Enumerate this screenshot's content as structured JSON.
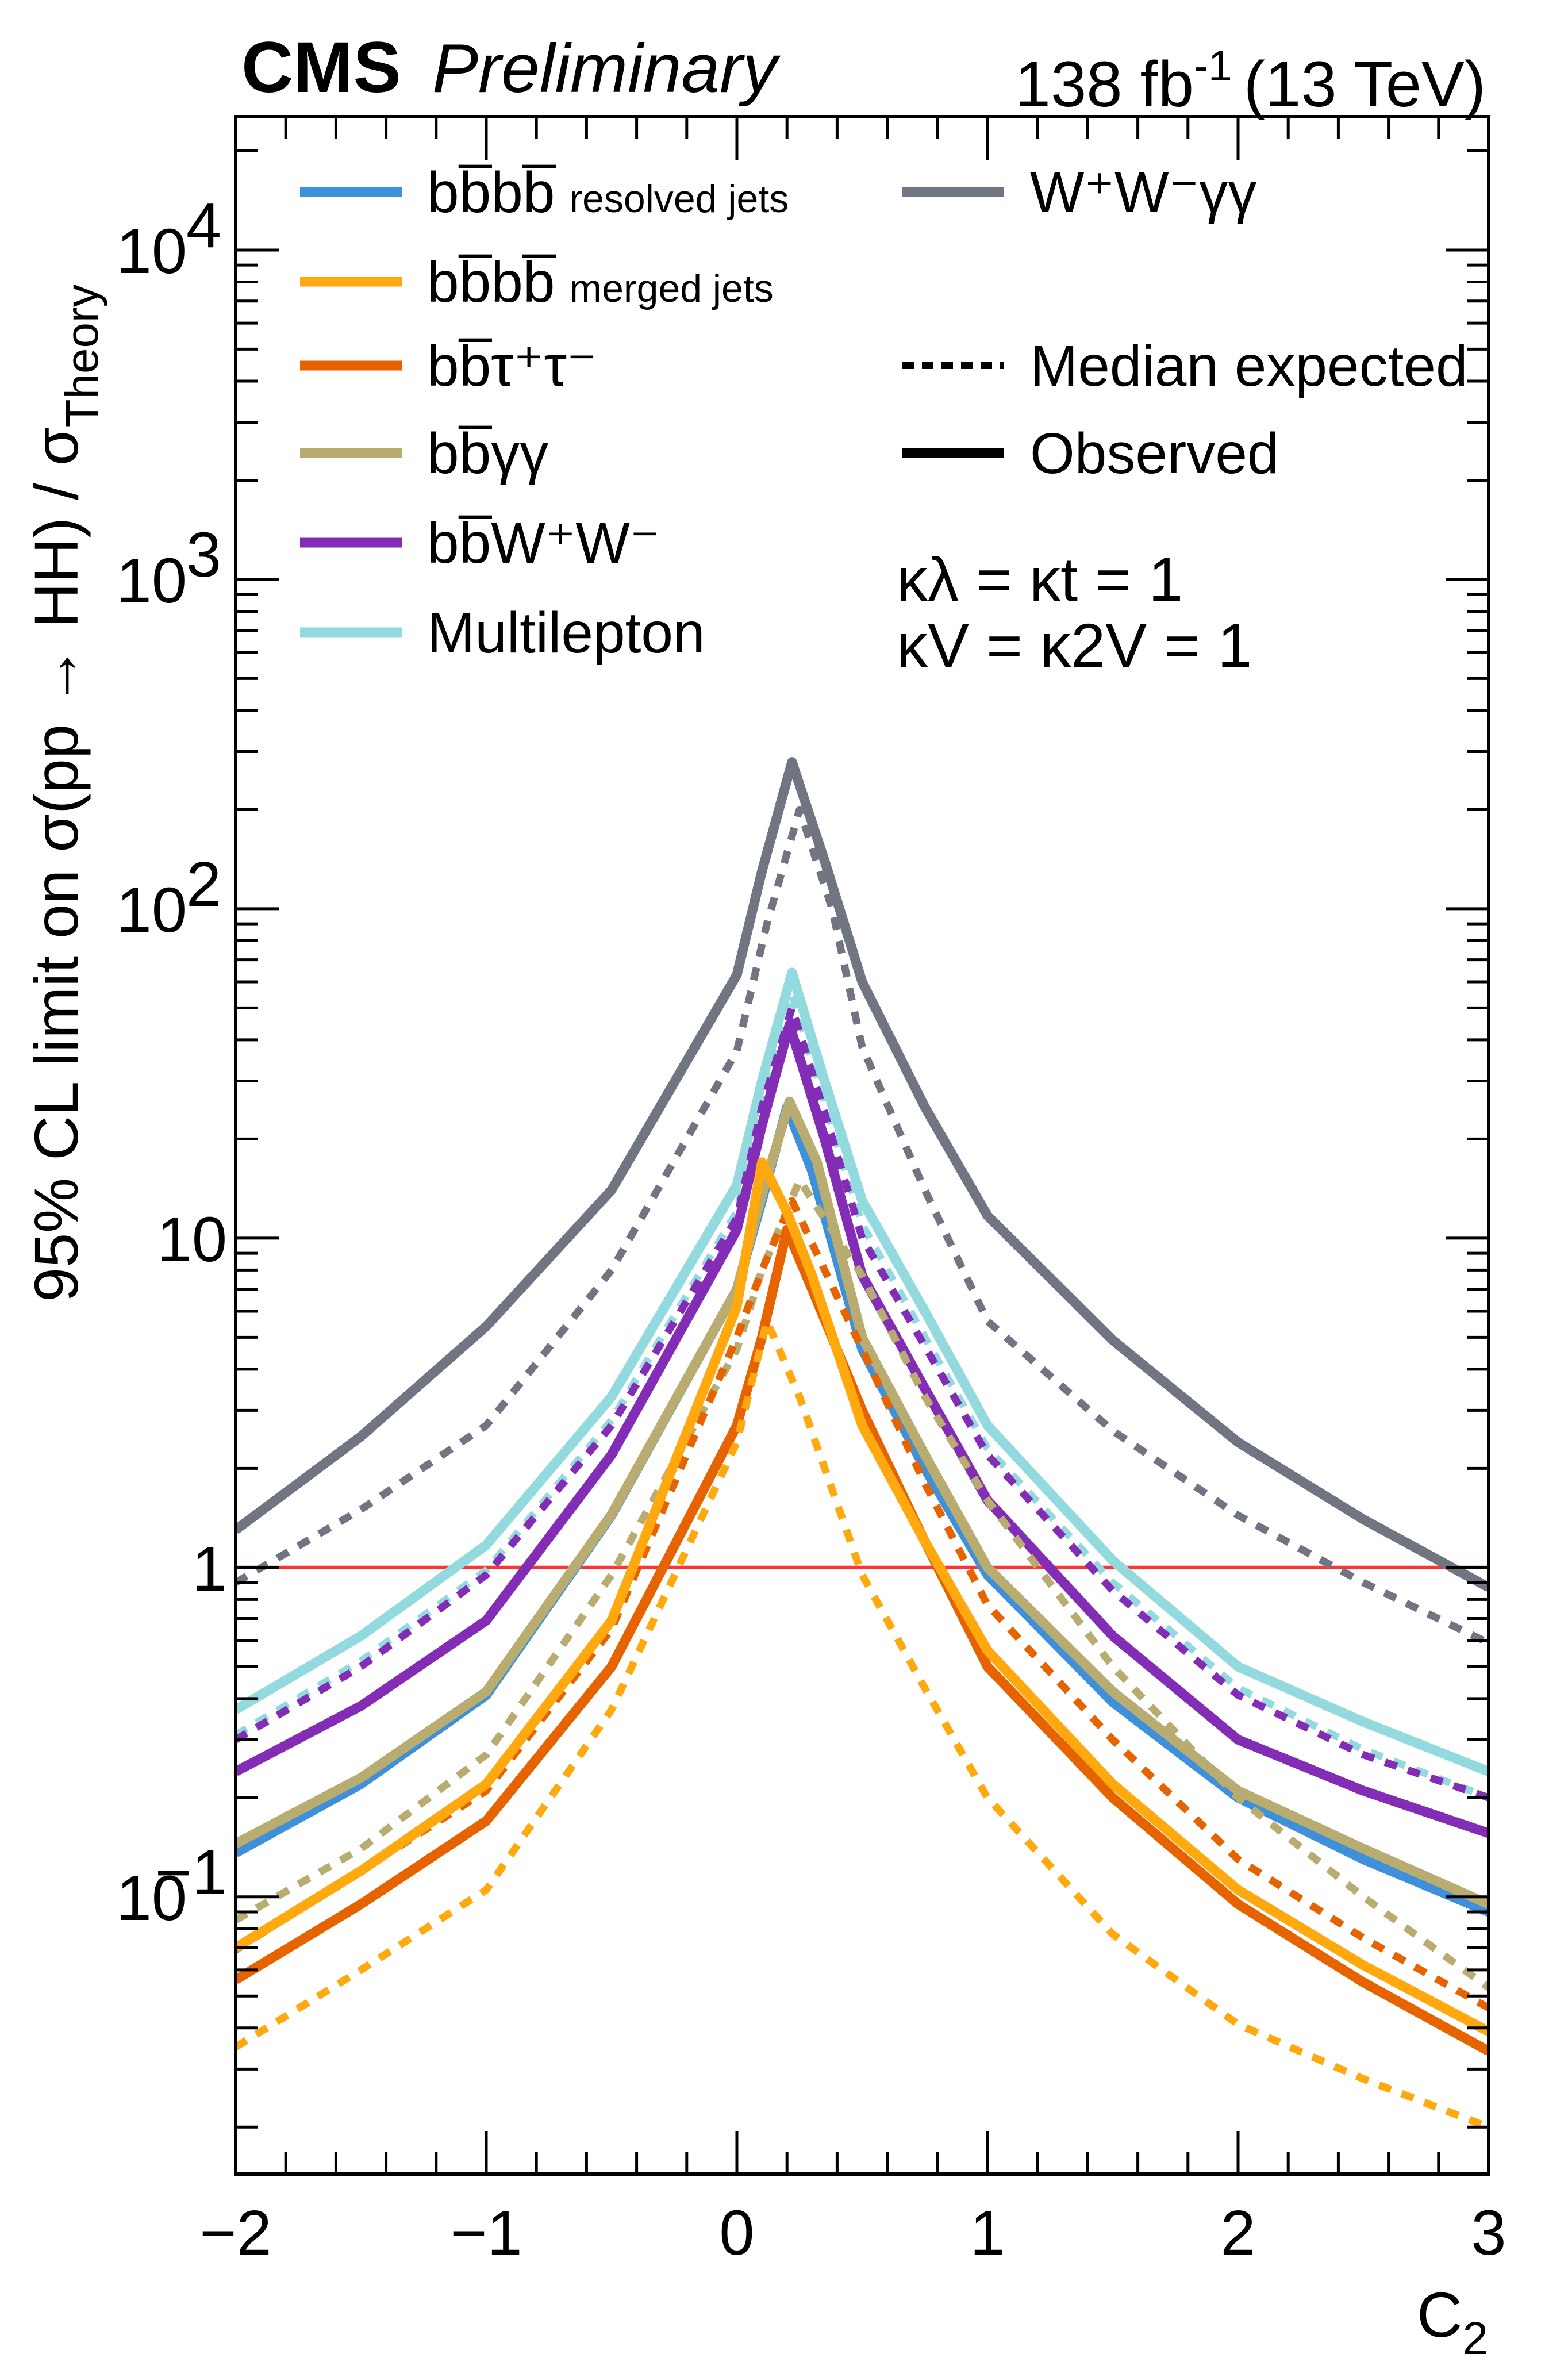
{
  "chart_data": {
    "type": "line",
    "header": {
      "experiment": "CMS",
      "status": "Preliminary",
      "lumi": "138 fb",
      "lumi_exp": "-1",
      "energy": "(13 TeV)"
    },
    "xlabel": "C",
    "xlabel_sub": "2",
    "ylabel": "95% CL limit on σ(pp → HH) / σ",
    "ylabel_sub": "Theory",
    "xlim": [
      -2,
      3
    ],
    "ylim": [
      0.0144,
      25400
    ],
    "yscale": "log",
    "x_ticks": [
      {
        "v": -2,
        "t": "−2"
      },
      {
        "v": -1,
        "t": "−1"
      },
      {
        "v": 0,
        "t": "0"
      },
      {
        "v": 1,
        "t": "1"
      },
      {
        "v": 2,
        "t": "2"
      },
      {
        "v": 3,
        "t": "3"
      }
    ],
    "y_ticks": [
      {
        "v": 0.1,
        "t": "10",
        "e": "−1"
      },
      {
        "v": 1,
        "t": "1",
        "e": ""
      },
      {
        "v": 10,
        "t": "10",
        "e": ""
      },
      {
        "v": 100,
        "t": "10",
        "e": "2"
      },
      {
        "v": 1000,
        "t": "10",
        "e": "3"
      },
      {
        "v": 10000,
        "t": "10",
        "e": "4"
      }
    ],
    "reference_line": {
      "y": 1,
      "color": "#ff3333"
    },
    "annotations": [
      "κλ = κt = 1",
      "κV = κ2V = 1"
    ],
    "annotation_parts": [
      {
        "a": "κ",
        "as": "λ",
        "b": " = κ",
        "bs": "t",
        "c": " = 1"
      },
      {
        "a": "κ",
        "as": "V",
        "b": " = κ",
        "bs": "2V",
        "c": " = 1"
      }
    ],
    "legend": {
      "left": [
        {
          "label": "bb̅bb̅",
          "small": "resolved jets",
          "color": "#3f90da"
        },
        {
          "label": "bb̅bb̅",
          "small": "merged jets",
          "color": "#ffa90e"
        },
        {
          "label": "bb̅τ⁺τ⁻",
          "small": "",
          "color": "#e76300"
        },
        {
          "label": "bb̅γγ",
          "small": "",
          "color": "#b9ac70"
        },
        {
          "label": "bb̅W⁺W⁻",
          "small": "",
          "color": "#832db6"
        },
        {
          "label": "Multilepton",
          "small": "",
          "color": "#92dadd"
        }
      ],
      "right": [
        {
          "label": "W⁺W⁻γγ",
          "style": "solid",
          "color": "#717581"
        },
        {
          "label": "Median expected",
          "style": "dotted",
          "color": "#000000"
        },
        {
          "label": "Observed",
          "style": "solid",
          "color": "#000000"
        }
      ]
    },
    "series": [
      {
        "name": "WWγγ observed",
        "color": "#717581",
        "style": "solid",
        "x": [
          -2,
          -1.5,
          -1,
          -0.5,
          0,
          0.1,
          0.22,
          0.35,
          0.5,
          0.75,
          1,
          1.5,
          2,
          2.5,
          3
        ],
        "y": [
          1.3,
          2.5,
          5.4,
          14,
          63,
          130,
          279,
          140,
          60,
          25,
          11.7,
          4.9,
          2.4,
          1.4,
          0.87
        ]
      },
      {
        "name": "WWγγ expected",
        "color": "#717581",
        "style": "dotted",
        "x": [
          -2,
          -1.5,
          -1,
          -0.5,
          0,
          0.12,
          0.25,
          0.38,
          0.5,
          0.75,
          1,
          1.5,
          2,
          2.5,
          3
        ],
        "y": [
          0.9,
          1.5,
          2.7,
          8,
          37,
          90,
          200,
          100,
          38,
          14,
          5.6,
          2.6,
          1.44,
          0.9,
          0.59
        ]
      },
      {
        "name": "Multilepton observed",
        "color": "#92dadd",
        "style": "solid",
        "x": [
          -2,
          -1.5,
          -1,
          -0.5,
          0,
          0.1,
          0.22,
          0.35,
          0.5,
          0.75,
          1,
          1.5,
          2,
          2.5,
          3
        ],
        "y": [
          0.37,
          0.62,
          1.17,
          3.3,
          14.5,
          30,
          64,
          30,
          13,
          6,
          2.7,
          1.05,
          0.5,
          0.34,
          0.24
        ]
      },
      {
        "name": "Multilepton expected",
        "color": "#92dadd",
        "style": "dotted",
        "x": [
          -2,
          -1.5,
          -1,
          -0.5,
          0,
          0.1,
          0.22,
          0.35,
          0.5,
          0.75,
          1,
          1.5,
          2,
          2.5,
          3
        ],
        "y": [
          0.31,
          0.52,
          0.98,
          2.8,
          12,
          26,
          55,
          26,
          11,
          5,
          2.3,
          0.9,
          0.43,
          0.28,
          0.2
        ]
      },
      {
        "name": "bbWW observed",
        "color": "#832db6",
        "style": "solid",
        "x": [
          -2,
          -1.5,
          -1,
          -0.5,
          0,
          0.1,
          0.21,
          0.35,
          0.5,
          0.75,
          1,
          1.5,
          2,
          2.5,
          3
        ],
        "y": [
          0.24,
          0.38,
          0.69,
          2.2,
          10.6,
          22,
          44.5,
          20,
          7.7,
          3.5,
          1.6,
          0.62,
          0.3,
          0.21,
          0.156
        ]
      },
      {
        "name": "bbWW expected",
        "color": "#832db6",
        "style": "dotted",
        "x": [
          -2,
          -1.5,
          -1,
          -0.5,
          0,
          0.1,
          0.22,
          0.35,
          0.5,
          0.75,
          1,
          1.5,
          2,
          2.5,
          3
        ],
        "y": [
          0.3,
          0.5,
          0.95,
          2.7,
          11.5,
          25,
          50,
          24,
          10,
          4.7,
          2.2,
          0.85,
          0.41,
          0.27,
          0.2
        ]
      },
      {
        "name": "bbbb resolved observed",
        "color": "#3f90da",
        "style": "solid",
        "x": [
          -2,
          -1.5,
          -1,
          -0.5,
          0,
          0.1,
          0.2,
          0.3,
          0.5,
          0.75,
          1,
          1.5,
          2,
          2.5,
          3
        ],
        "y": [
          0.136,
          0.22,
          0.41,
          1.44,
          7,
          13,
          25,
          16,
          4.6,
          2,
          0.95,
          0.39,
          0.2,
          0.13,
          0.09
        ]
      },
      {
        "name": "bbγγ observed",
        "color": "#b9ac70",
        "style": "solid",
        "x": [
          -2,
          -1.5,
          -1,
          -0.5,
          0,
          0.1,
          0.21,
          0.32,
          0.5,
          0.75,
          1,
          1.5,
          2,
          2.5,
          3
        ],
        "y": [
          0.145,
          0.23,
          0.42,
          1.45,
          7,
          13.5,
          26,
          17,
          5,
          2.2,
          1.0,
          0.42,
          0.21,
          0.14,
          0.095
        ]
      },
      {
        "name": "bbγγ expected",
        "color": "#b9ac70",
        "style": "dotted",
        "x": [
          -2,
          -1.5,
          -1,
          -0.5,
          0,
          0.1,
          0.25,
          0.4,
          0.5,
          0.75,
          1,
          1.5,
          2,
          2.5,
          3
        ],
        "y": [
          0.085,
          0.14,
          0.27,
          0.95,
          4.6,
          8,
          15,
          10,
          7.7,
          3.3,
          1.6,
          0.5,
          0.2,
          0.1,
          0.053
        ]
      },
      {
        "name": "bbττ observed",
        "color": "#e76300",
        "style": "solid",
        "x": [
          -2,
          -1.5,
          -1,
          -0.5,
          0,
          0.1,
          0.2,
          0.3,
          0.5,
          0.75,
          1,
          1.5,
          2,
          2.5,
          3
        ],
        "y": [
          0.056,
          0.095,
          0.17,
          0.5,
          2.7,
          5,
          10.6,
          7,
          3,
          1.2,
          0.5,
          0.2,
          0.095,
          0.055,
          0.034
        ]
      },
      {
        "name": "bbττ expected",
        "color": "#e76300",
        "style": "dotted",
        "x": [
          -2,
          -1.5,
          -1,
          -0.5,
          0,
          0.1,
          0.22,
          0.35,
          0.5,
          0.75,
          1,
          1.5,
          2,
          2.5,
          3
        ],
        "y": [
          0.069,
          0.12,
          0.21,
          0.65,
          5,
          8,
          13,
          8,
          4.6,
          1.8,
          0.77,
          0.3,
          0.13,
          0.075,
          0.046
        ]
      },
      {
        "name": "bbbb merged observed",
        "color": "#ffa90e",
        "style": "solid",
        "x": [
          -2,
          -1.5,
          -1,
          -0.5,
          0,
          0.1,
          0.2,
          0.3,
          0.5,
          0.75,
          1,
          1.5,
          2,
          2.5,
          3
        ],
        "y": [
          0.07,
          0.12,
          0.22,
          0.69,
          6.2,
          17,
          12,
          7.7,
          2.7,
          1.2,
          0.56,
          0.22,
          0.105,
          0.062,
          0.039
        ]
      },
      {
        "name": "bbbb merged expected",
        "color": "#ffa90e",
        "style": "dotted",
        "x": [
          -2,
          -1.5,
          -1,
          -0.5,
          0,
          0.12,
          0.25,
          0.5,
          0.75,
          1,
          1.5,
          2,
          2.5,
          3
        ],
        "y": [
          0.035,
          0.06,
          0.105,
          0.37,
          2.4,
          5.6,
          3.3,
          0.95,
          0.43,
          0.2,
          0.077,
          0.041,
          0.028,
          0.02
        ]
      }
    ]
  }
}
